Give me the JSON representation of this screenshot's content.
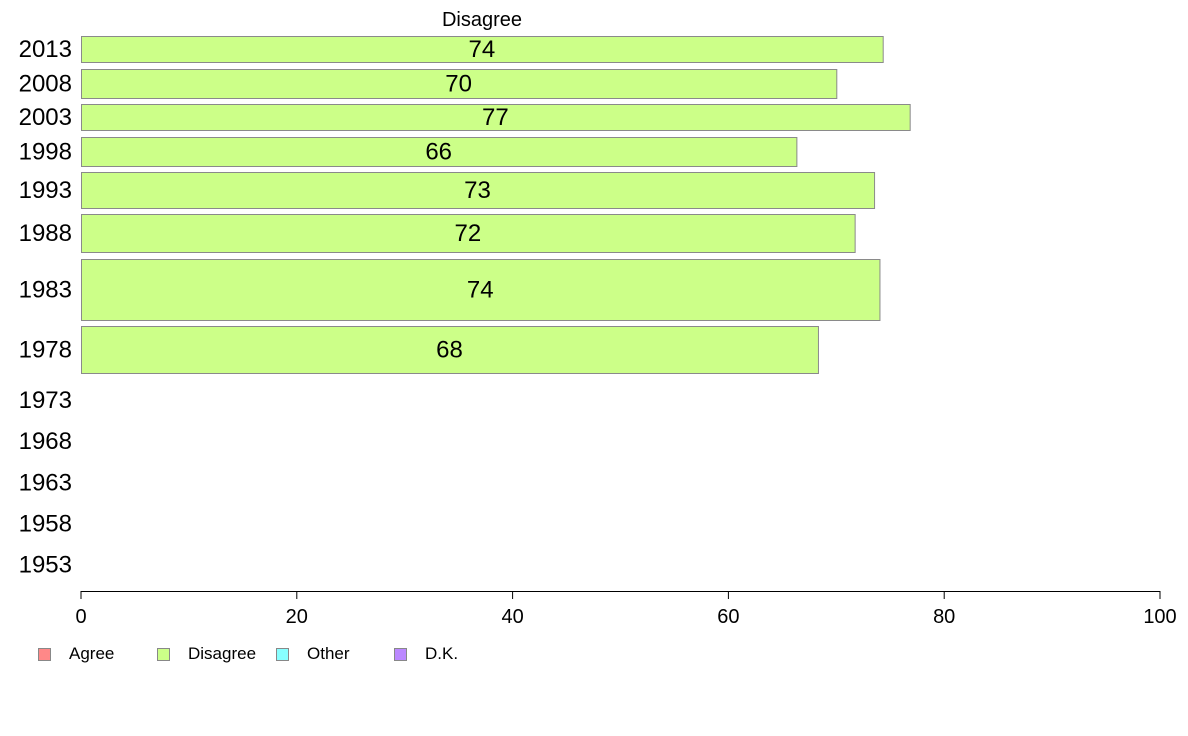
{
  "chart_data": {
    "type": "bar",
    "orientation": "horizontal",
    "title": "Disagree",
    "categories": [
      "2013",
      "2008",
      "2003",
      "1998",
      "1993",
      "1988",
      "1983",
      "1978",
      "1973",
      "1968",
      "1963",
      "1958",
      "1953"
    ],
    "series": [
      {
        "name": "Disagree",
        "color": "#ccff88",
        "values": [
          74.3,
          70.0,
          76.8,
          66.3,
          73.5,
          71.7,
          74.0,
          68.3,
          null,
          null,
          null,
          null,
          null
        ],
        "labels": [
          "74",
          "70",
          "77",
          "66",
          "73",
          "72",
          "74",
          "68",
          null,
          null,
          null,
          null,
          null
        ]
      }
    ],
    "xlim": [
      0,
      100
    ],
    "xticks": [
      "0",
      "20",
      "40",
      "60",
      "80",
      "100"
    ],
    "legend_position": "bottom-left",
    "grid": false
  },
  "legend": [
    {
      "label": "Agree",
      "color": "#ff8888"
    },
    {
      "label": "Disagree",
      "color": "#ccff88"
    },
    {
      "label": "Other",
      "color": "#88ffff"
    },
    {
      "label": "D.K.",
      "color": "#bb88ff"
    }
  ]
}
